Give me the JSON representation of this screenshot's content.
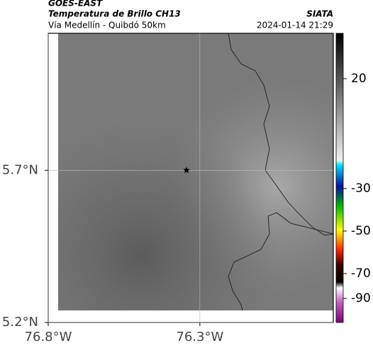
{
  "header": {
    "source": "GOES-EAST",
    "title": "Temperatura de Brillo CH13",
    "subtitle": "Vía Medellín - Quibdó 50km",
    "agency": "SIATA",
    "datetime": "2024-01-14 21:29"
  },
  "map": {
    "xlim": [
      -76.8,
      -75.86
    ],
    "ylim": [
      5.2,
      6.15
    ],
    "xticks": [
      {
        "value": -76.8,
        "label": "76.8°W"
      },
      {
        "value": -76.3,
        "label": "76.3°W"
      }
    ],
    "yticks": [
      {
        "value": 5.7,
        "label": "5.7°N"
      },
      {
        "value": 5.2,
        "label": "5.2°N"
      }
    ],
    "marker": {
      "lon": -76.344,
      "lat": 5.7
    }
  },
  "colorbar": {
    "ticks": [
      20,
      -30,
      -50,
      -70,
      -90
    ]
  }
}
